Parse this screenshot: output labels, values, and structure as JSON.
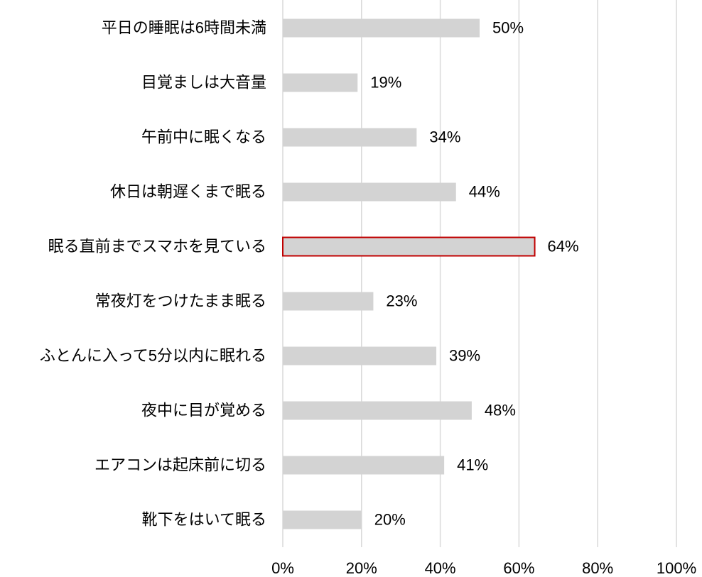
{
  "chart_data": {
    "type": "barh",
    "categories": [
      "平日の睡眠は6時間未満",
      "目覚ましは大音量",
      "午前中に眠くなる",
      "休日は朝遅くまで眠る",
      "眠る直前までスマホを見ている",
      "常夜灯をつけたまま眠る",
      "ふとんに入って5分以内に眠れる",
      "夜中に目が覚める",
      "エアコンは起床前に切る",
      "靴下をはいて眠る"
    ],
    "values": [
      50,
      19,
      34,
      44,
      64,
      23,
      39,
      48,
      41,
      20
    ],
    "value_labels": [
      "50%",
      "19%",
      "34%",
      "44%",
      "64%",
      "23%",
      "39%",
      "48%",
      "41%",
      "20%"
    ],
    "color": "#d3d3d3",
    "highlight_index": 4,
    "highlight_color": "#c00000",
    "xlim": [
      0,
      100
    ],
    "xticks": [
      {
        "value": 0,
        "label": "0%"
      },
      {
        "value": 20,
        "label": "20%"
      },
      {
        "value": 40,
        "label": "40%"
      },
      {
        "value": 60,
        "label": "60%"
      },
      {
        "value": 80,
        "label": "80%"
      },
      {
        "value": 100,
        "label": "100%"
      }
    ],
    "grid": true
  }
}
